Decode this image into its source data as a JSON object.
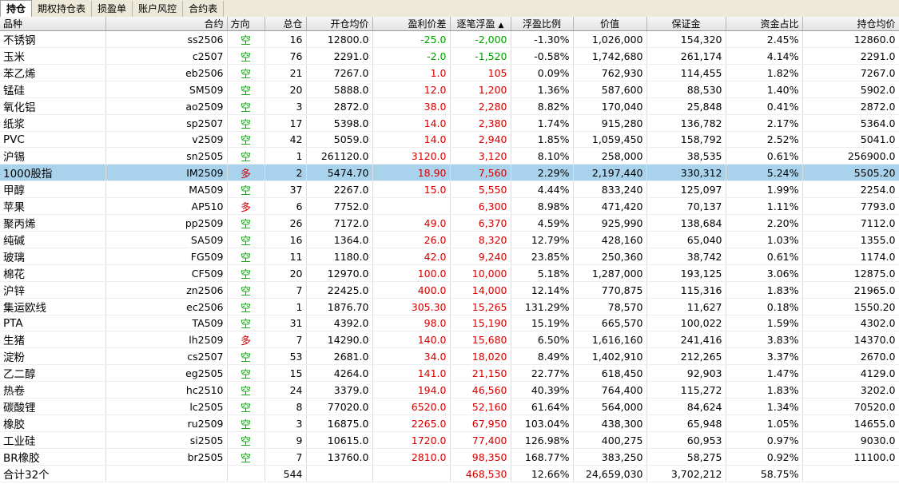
{
  "tabs": [
    "持仓",
    "期权持仓表",
    "损盈单",
    "账户风控",
    "合约表"
  ],
  "columns": [
    "品种",
    "合约",
    "方向",
    "总仓",
    "开仓均价",
    "盈利价差",
    "逐笔浮盈",
    "浮盈比例",
    "价值",
    "保证金",
    "资金占比",
    "持仓均价"
  ],
  "sort_mark": "▲",
  "rows": [
    {
      "name": "不锈钢",
      "code": "ss2506",
      "dir": "空",
      "qty": "16",
      "open": "12800.0",
      "diff": "-25.0",
      "float": "-2,000",
      "ratio": "-1.30%",
      "value": "1,026,000",
      "margin": "154,320",
      "share": "2.45%",
      "avg": "12860.0",
      "sign": "neg"
    },
    {
      "name": "玉米",
      "code": "c2507",
      "dir": "空",
      "qty": "76",
      "open": "2291.0",
      "diff": "-2.0",
      "float": "-1,520",
      "ratio": "-0.58%",
      "value": "1,742,680",
      "margin": "261,174",
      "share": "4.14%",
      "avg": "2291.0",
      "sign": "neg"
    },
    {
      "name": "苯乙烯",
      "code": "eb2506",
      "dir": "空",
      "qty": "21",
      "open": "7267.0",
      "diff": "1.0",
      "float": "105",
      "ratio": "0.09%",
      "value": "762,930",
      "margin": "114,455",
      "share": "1.82%",
      "avg": "7267.0",
      "sign": "pos"
    },
    {
      "name": "锰硅",
      "code": "SM509",
      "dir": "空",
      "qty": "20",
      "open": "5888.0",
      "diff": "12.0",
      "float": "1,200",
      "ratio": "1.36%",
      "value": "587,600",
      "margin": "88,530",
      "share": "1.40%",
      "avg": "5902.0",
      "sign": "pos"
    },
    {
      "name": "氧化铝",
      "code": "ao2509",
      "dir": "空",
      "qty": "3",
      "open": "2872.0",
      "diff": "38.0",
      "float": "2,280",
      "ratio": "8.82%",
      "value": "170,040",
      "margin": "25,848",
      "share": "0.41%",
      "avg": "2872.0",
      "sign": "pos"
    },
    {
      "name": "纸浆",
      "code": "sp2507",
      "dir": "空",
      "qty": "17",
      "open": "5398.0",
      "diff": "14.0",
      "float": "2,380",
      "ratio": "1.74%",
      "value": "915,280",
      "margin": "136,782",
      "share": "2.17%",
      "avg": "5364.0",
      "sign": "pos"
    },
    {
      "name": "PVC",
      "code": "v2509",
      "dir": "空",
      "qty": "42",
      "open": "5059.0",
      "diff": "14.0",
      "float": "2,940",
      "ratio": "1.85%",
      "value": "1,059,450",
      "margin": "158,792",
      "share": "2.52%",
      "avg": "5041.0",
      "sign": "pos"
    },
    {
      "name": "沪锡",
      "code": "sn2505",
      "dir": "空",
      "qty": "1",
      "open": "261120.0",
      "diff": "3120.0",
      "float": "3,120",
      "ratio": "8.10%",
      "value": "258,000",
      "margin": "38,535",
      "share": "0.61%",
      "avg": "256900.0",
      "sign": "pos"
    },
    {
      "name": "1000股指",
      "code": "IM2509",
      "dir": "多",
      "qty": "2",
      "open": "5474.70",
      "diff": "18.90",
      "float": "7,560",
      "ratio": "2.29%",
      "value": "2,197,440",
      "margin": "330,312",
      "share": "5.24%",
      "avg": "5505.20",
      "sign": "pos",
      "selected": true
    },
    {
      "name": "甲醇",
      "code": "MA509",
      "dir": "空",
      "qty": "37",
      "open": "2267.0",
      "diff": "15.0",
      "float": "5,550",
      "ratio": "4.44%",
      "value": "833,240",
      "margin": "125,097",
      "share": "1.99%",
      "avg": "2254.0",
      "sign": "pos"
    },
    {
      "name": "苹果",
      "code": "AP510",
      "dir": "多",
      "qty": "6",
      "open": "7752.0",
      "diff": "",
      "float": "6,300",
      "ratio": "8.98%",
      "value": "471,420",
      "margin": "70,137",
      "share": "1.11%",
      "avg": "7793.0",
      "sign": "pos"
    },
    {
      "name": "聚丙烯",
      "code": "pp2509",
      "dir": "空",
      "qty": "26",
      "open": "7172.0",
      "diff": "49.0",
      "float": "6,370",
      "ratio": "4.59%",
      "value": "925,990",
      "margin": "138,684",
      "share": "2.20%",
      "avg": "7112.0",
      "sign": "pos"
    },
    {
      "name": "纯碱",
      "code": "SA509",
      "dir": "空",
      "qty": "16",
      "open": "1364.0",
      "diff": "26.0",
      "float": "8,320",
      "ratio": "12.79%",
      "value": "428,160",
      "margin": "65,040",
      "share": "1.03%",
      "avg": "1355.0",
      "sign": "pos"
    },
    {
      "name": "玻璃",
      "code": "FG509",
      "dir": "空",
      "qty": "11",
      "open": "1180.0",
      "diff": "42.0",
      "float": "9,240",
      "ratio": "23.85%",
      "value": "250,360",
      "margin": "38,742",
      "share": "0.61%",
      "avg": "1174.0",
      "sign": "pos"
    },
    {
      "name": "棉花",
      "code": "CF509",
      "dir": "空",
      "qty": "20",
      "open": "12970.0",
      "diff": "100.0",
      "float": "10,000",
      "ratio": "5.18%",
      "value": "1,287,000",
      "margin": "193,125",
      "share": "3.06%",
      "avg": "12875.0",
      "sign": "pos"
    },
    {
      "name": "沪锌",
      "code": "zn2506",
      "dir": "空",
      "qty": "7",
      "open": "22425.0",
      "diff": "400.0",
      "float": "14,000",
      "ratio": "12.14%",
      "value": "770,875",
      "margin": "115,316",
      "share": "1.83%",
      "avg": "21965.0",
      "sign": "pos"
    },
    {
      "name": "集运欧线",
      "code": "ec2506",
      "dir": "空",
      "qty": "1",
      "open": "1876.70",
      "diff": "305.30",
      "float": "15,265",
      "ratio": "131.29%",
      "value": "78,570",
      "margin": "11,627",
      "share": "0.18%",
      "avg": "1550.20",
      "sign": "pos"
    },
    {
      "name": "PTA",
      "code": "TA509",
      "dir": "空",
      "qty": "31",
      "open": "4392.0",
      "diff": "98.0",
      "float": "15,190",
      "ratio": "15.19%",
      "value": "665,570",
      "margin": "100,022",
      "share": "1.59%",
      "avg": "4302.0",
      "sign": "pos"
    },
    {
      "name": "生猪",
      "code": "lh2509",
      "dir": "多",
      "qty": "7",
      "open": "14290.0",
      "diff": "140.0",
      "float": "15,680",
      "ratio": "6.50%",
      "value": "1,616,160",
      "margin": "241,416",
      "share": "3.83%",
      "avg": "14370.0",
      "sign": "pos"
    },
    {
      "name": "淀粉",
      "code": "cs2507",
      "dir": "空",
      "qty": "53",
      "open": "2681.0",
      "diff": "34.0",
      "float": "18,020",
      "ratio": "8.49%",
      "value": "1,402,910",
      "margin": "212,265",
      "share": "3.37%",
      "avg": "2670.0",
      "sign": "pos"
    },
    {
      "name": "乙二醇",
      "code": "eg2505",
      "dir": "空",
      "qty": "15",
      "open": "4264.0",
      "diff": "141.0",
      "float": "21,150",
      "ratio": "22.77%",
      "value": "618,450",
      "margin": "92,903",
      "share": "1.47%",
      "avg": "4129.0",
      "sign": "pos"
    },
    {
      "name": "热卷",
      "code": "hc2510",
      "dir": "空",
      "qty": "24",
      "open": "3379.0",
      "diff": "194.0",
      "float": "46,560",
      "ratio": "40.39%",
      "value": "764,400",
      "margin": "115,272",
      "share": "1.83%",
      "avg": "3202.0",
      "sign": "pos"
    },
    {
      "name": "碳酸锂",
      "code": "lc2505",
      "dir": "空",
      "qty": "8",
      "open": "77020.0",
      "diff": "6520.0",
      "float": "52,160",
      "ratio": "61.64%",
      "value": "564,000",
      "margin": "84,624",
      "share": "1.34%",
      "avg": "70520.0",
      "sign": "pos"
    },
    {
      "name": "橡胶",
      "code": "ru2509",
      "dir": "空",
      "qty": "3",
      "open": "16875.0",
      "diff": "2265.0",
      "float": "67,950",
      "ratio": "103.04%",
      "value": "438,300",
      "margin": "65,948",
      "share": "1.05%",
      "avg": "14655.0",
      "sign": "pos"
    },
    {
      "name": "工业硅",
      "code": "si2505",
      "dir": "空",
      "qty": "9",
      "open": "10615.0",
      "diff": "1720.0",
      "float": "77,400",
      "ratio": "126.98%",
      "value": "400,275",
      "margin": "60,953",
      "share": "0.97%",
      "avg": "9030.0",
      "sign": "pos"
    },
    {
      "name": "BR橡胶",
      "code": "br2505",
      "dir": "空",
      "qty": "7",
      "open": "13760.0",
      "diff": "2810.0",
      "float": "98,350",
      "ratio": "168.77%",
      "value": "383,250",
      "margin": "58,275",
      "share": "0.92%",
      "avg": "11100.0",
      "sign": "pos"
    }
  ],
  "total": {
    "label": "合计32个",
    "qty": "544",
    "float": "468,530",
    "ratio": "12.66%",
    "value": "24,659,030",
    "margin": "3,702,212",
    "share": "58.75%"
  },
  "colors": {
    "long": "#d00000",
    "short": "#00a000",
    "selected_row": "#a9d3ec"
  }
}
